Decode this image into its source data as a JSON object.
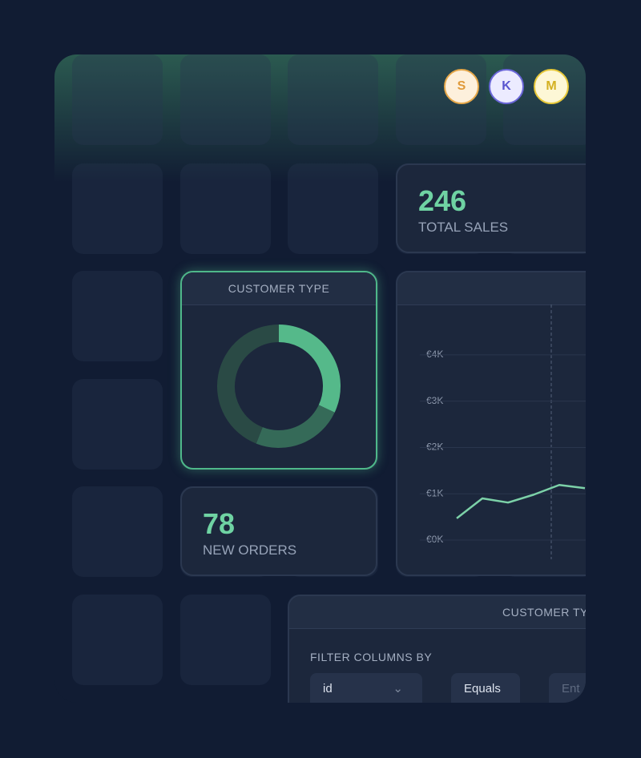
{
  "avatars": [
    "S",
    "K",
    "M"
  ],
  "total_sales": {
    "value": "246",
    "label": "TOTAL SALES"
  },
  "new_orders": {
    "value": "78",
    "label": "NEW ORDERS"
  },
  "donut_card": {
    "title": "CUSTOMER TYPE",
    "chart_data": {
      "type": "donut",
      "values": [
        32,
        24,
        44
      ],
      "colors": [
        "#55b98a",
        "#356a58",
        "#2a4a45"
      ]
    }
  },
  "line_card": {
    "chart_data": {
      "type": "line",
      "values": [
        0.47,
        0.9,
        0.81,
        0.98,
        1.19,
        1.12
      ],
      "color": "#7cd1a8",
      "ylim": [
        0,
        4.5
      ],
      "yticks": [
        {
          "value": 0,
          "label": "€0K"
        },
        {
          "value": 1,
          "label": "€1K"
        },
        {
          "value": 2,
          "label": "€2K"
        },
        {
          "value": 3,
          "label": "€3K"
        },
        {
          "value": 4,
          "label": "€4K"
        }
      ],
      "grid": true
    }
  },
  "table_card": {
    "title": "CUSTOMER TY",
    "filter_label": "FILTER COLUMNS BY",
    "column_select": "id",
    "operator_select": "Equals",
    "value_input": "Ent"
  }
}
